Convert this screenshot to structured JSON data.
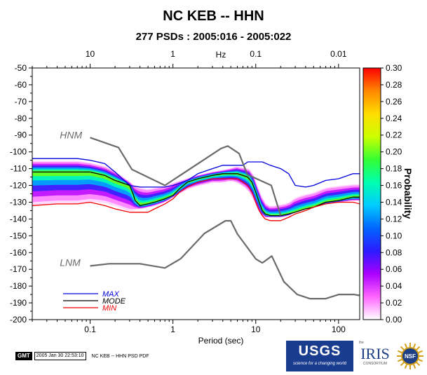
{
  "chart_data": {
    "type": "heatmap",
    "title": "NC KEB -- HHN",
    "subtitle": "277 PSDs : 2005:016 - 2005:022",
    "xlabel": "Period (sec)",
    "x_scale": "log",
    "xlim": [
      0.02,
      180
    ],
    "x_ticks": [
      {
        "value": 0.1,
        "label": "0.1"
      },
      {
        "value": 1,
        "label": "1"
      },
      {
        "value": 10,
        "label": "10"
      },
      {
        "value": 100,
        "label": "100"
      }
    ],
    "top_axis_label": "Hz",
    "top_ticks": [
      {
        "period": 0.1,
        "label": "10"
      },
      {
        "period": 1,
        "label": "1"
      },
      {
        "period": 10,
        "label": "0.1"
      },
      {
        "period": 100,
        "label": "0.01"
      }
    ],
    "ylabel": "",
    "ylim": [
      -200,
      -50
    ],
    "y_ticks": [
      -50,
      -60,
      -70,
      -80,
      -90,
      -100,
      -110,
      -120,
      -130,
      -140,
      -150,
      -160,
      -170,
      -180,
      -190,
      -200
    ],
    "colorbar": {
      "label": "Probability",
      "range": [
        0,
        0.3
      ],
      "ticks": [
        "0.30",
        "0.28",
        "0.26",
        "0.24",
        "0.22",
        "0.20",
        "0.18",
        "0.16",
        "0.14",
        "0.12",
        "0.10",
        "0.08",
        "0.06",
        "0.04",
        "0.02",
        "0.00"
      ],
      "colors": [
        "#ffffff",
        "#ff66ff",
        "#aa00ff",
        "#2b1bff",
        "#0066ff",
        "#00ccff",
        "#00ffb0",
        "#33ff33",
        "#ccff00",
        "#ffdd00",
        "#ff8800",
        "#ff0000"
      ]
    },
    "annotations": [
      {
        "text": "HNM",
        "x": 0.043,
        "y": -92
      },
      {
        "text": "LNM",
        "x": 0.043,
        "y": -168
      }
    ],
    "legend": {
      "placement": "bottom-left",
      "entries": [
        {
          "name": "MAX",
          "color": "#0000dd"
        },
        {
          "name": "MODE",
          "color": "#000000"
        },
        {
          "name": "MIN",
          "color": "#ee0000"
        }
      ]
    },
    "series": [
      {
        "name": "MAX",
        "color": "#0000dd",
        "x": [
          0.02,
          0.04,
          0.07,
          0.1,
          0.15,
          0.2,
          0.3,
          0.4,
          0.6,
          0.8,
          1.0,
          1.5,
          2,
          3,
          4,
          5,
          6,
          7,
          8,
          9,
          10,
          12,
          15,
          20,
          25,
          30,
          40,
          50,
          70,
          100,
          150,
          180
        ],
        "y": [
          -104,
          -104,
          -104,
          -105,
          -107,
          -112,
          -120,
          -121,
          -121,
          -121,
          -120,
          -117,
          -113,
          -110,
          -108,
          -108,
          -108,
          -108,
          -106,
          -106,
          -106,
          -106,
          -108,
          -110,
          -113,
          -120,
          -121,
          -120,
          -117,
          -116,
          -113,
          -113
        ]
      },
      {
        "name": "MODE",
        "color": "#000000",
        "x": [
          0.02,
          0.04,
          0.07,
          0.1,
          0.15,
          0.2,
          0.3,
          0.33,
          0.35,
          0.4,
          0.5,
          0.6,
          0.8,
          1.0,
          1.2,
          1.5,
          2,
          3,
          4,
          5,
          6,
          7,
          8,
          9,
          10,
          11,
          12,
          13,
          15,
          20,
          25,
          30,
          40,
          50,
          70,
          100,
          150,
          180
        ],
        "y": [
          -112,
          -112,
          -112,
          -112,
          -114,
          -117,
          -120,
          -125,
          -129,
          -132,
          -131,
          -130,
          -128,
          -126,
          -122,
          -118,
          -116,
          -114,
          -113,
          -113,
          -113,
          -114,
          -115,
          -118,
          -124,
          -130,
          -135,
          -137,
          -138,
          -138,
          -137,
          -136,
          -134,
          -133,
          -130,
          -129,
          -127,
          -127
        ]
      },
      {
        "name": "MIN",
        "color": "#ee0000",
        "x": [
          0.02,
          0.04,
          0.07,
          0.1,
          0.15,
          0.2,
          0.3,
          0.35,
          0.5,
          0.6,
          0.8,
          1.0,
          1.2,
          1.5,
          2,
          3,
          4,
          5,
          6,
          7,
          8,
          9,
          10,
          11,
          12,
          13,
          15,
          20,
          25,
          30,
          40,
          50,
          70,
          100,
          150,
          180
        ],
        "y": [
          -132,
          -131,
          -131,
          -130,
          -132,
          -134,
          -136,
          -136,
          -136,
          -134,
          -131,
          -128,
          -124,
          -121,
          -118,
          -116,
          -116,
          -116,
          -116,
          -118,
          -120,
          -124,
          -130,
          -135,
          -138,
          -140,
          -141,
          -141,
          -139,
          -137,
          -135,
          -133,
          -131,
          -130,
          -130,
          -131
        ]
      },
      {
        "name": "HNM",
        "color": "#6b6b6b",
        "x": [
          0.1,
          0.22,
          0.32,
          0.8,
          3.8,
          4.6,
          6.3,
          7.9,
          15.4,
          20
        ],
        "y": [
          -91.5,
          -97.4,
          -110.5,
          -120,
          -98,
          -96.5,
          -101,
          -113.5,
          -120,
          -138
        ]
      },
      {
        "name": "LNM",
        "color": "#6b6b6b",
        "x": [
          0.1,
          0.17,
          0.4,
          0.8,
          1.24,
          2.4,
          4.3,
          5,
          6,
          10,
          12,
          15.6,
          21.9,
          31.6,
          45,
          70,
          101,
          154,
          178
        ],
        "y": [
          -168,
          -166.7,
          -166.7,
          -169.2,
          -163.7,
          -148.6,
          -141.1,
          -141.1,
          -149,
          -163.8,
          -166.2,
          -162.1,
          -177.5,
          -185,
          -187.5,
          -187.5,
          -185,
          -185,
          -185.6
        ]
      }
    ],
    "density_band": {
      "x": [
        0.02,
        0.04,
        0.07,
        0.1,
        0.15,
        0.2,
        0.3,
        0.35,
        0.4,
        0.5,
        0.6,
        0.8,
        1.0,
        1.5,
        2,
        3,
        4,
        5,
        6,
        7,
        8,
        9,
        10,
        11,
        12,
        13,
        15,
        20,
        25,
        30,
        40,
        50,
        70,
        100,
        150,
        180
      ],
      "upper": [
        -106,
        -106,
        -106,
        -107,
        -109,
        -112,
        -118,
        -121,
        -122,
        -123,
        -122,
        -121,
        -119,
        -116,
        -114,
        -112,
        -111,
        -110,
        -109,
        -110,
        -110,
        -112,
        -118,
        -124,
        -128,
        -131,
        -133,
        -132,
        -131,
        -128,
        -126,
        -125,
        -122,
        -121,
        -120,
        -120
      ],
      "lower": [
        -130,
        -129,
        -129,
        -128,
        -129,
        -131,
        -134,
        -134,
        -134,
        -133,
        -132,
        -130,
        -127,
        -122,
        -120,
        -118,
        -118,
        -117,
        -118,
        -120,
        -122,
        -126,
        -131,
        -136,
        -138,
        -139,
        -139,
        -139,
        -138,
        -136,
        -134,
        -133,
        -131,
        -130,
        -129,
        -129
      ]
    }
  },
  "footer": {
    "gmt": "GMT",
    "timestamp": "2005 Jan 30 22:53:10",
    "caption": "NC KEB -- HHN PSD PDF",
    "usgs": "USGS",
    "usgs_tagline": "science for a changing world",
    "iris_prefix": "the",
    "iris": "IRIS",
    "iris_sub": "CONSORTIUM",
    "nsf": "NSF"
  }
}
